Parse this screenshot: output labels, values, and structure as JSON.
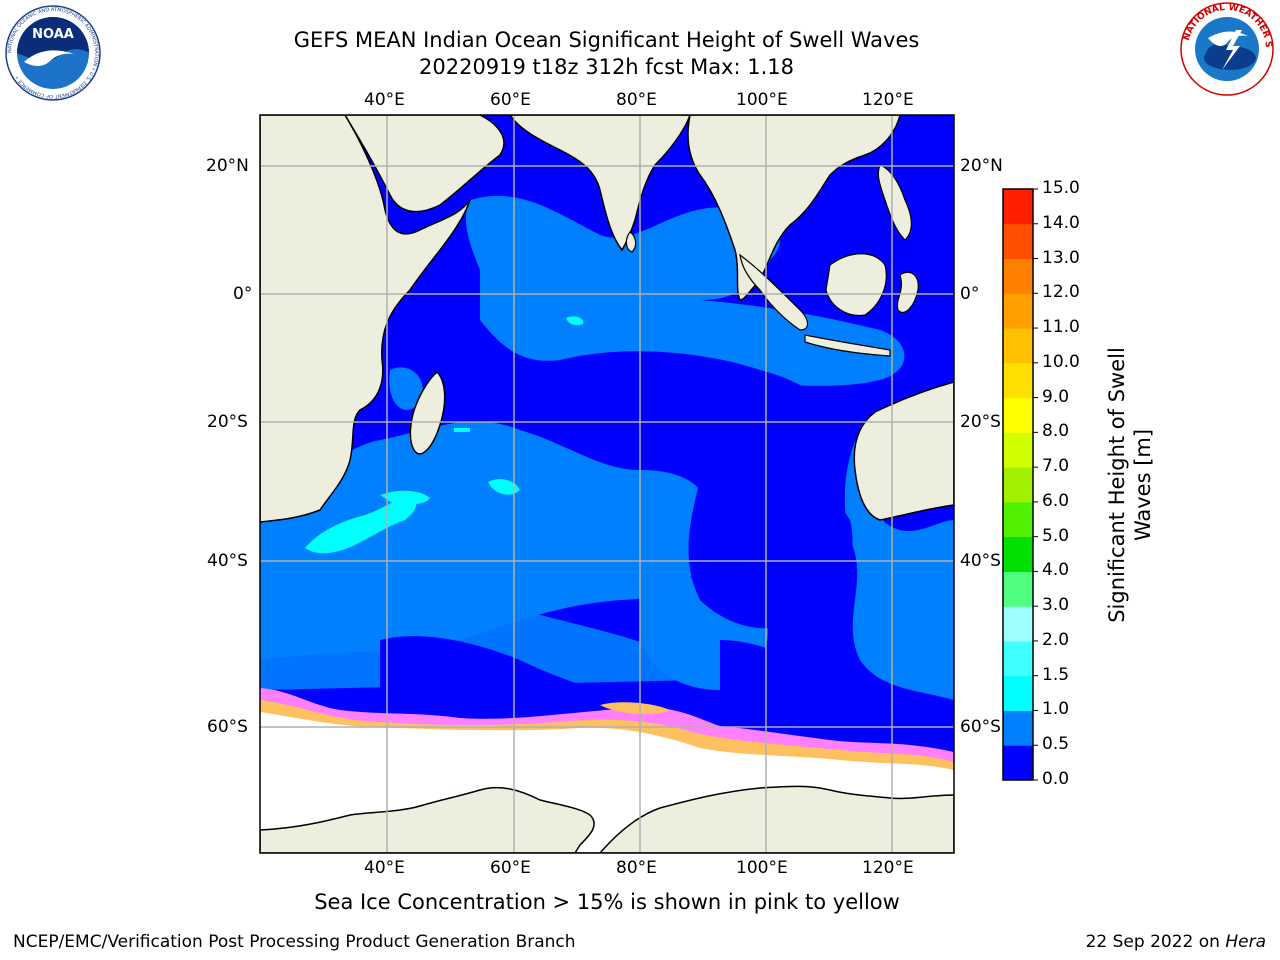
{
  "title": {
    "line1": "GEFS MEAN Indian Ocean Significant Height of Swell Waves",
    "line2": "20220919 t18z 312h fcst   Max: 1.18"
  },
  "logos": {
    "noaa": {
      "text": "NOAA",
      "ring": "NATIONAL OCEANIC AND ATMOSPHERIC ADMINISTRATION • U.S. DEPARTMENT OF COMMERCE •"
    },
    "nws": {
      "ring": "NATIONAL WEATHER SERVICE"
    }
  },
  "map": {
    "lon_ticks": [
      "40°E",
      "60°E",
      "80°E",
      "100°E",
      "120°E"
    ],
    "lat_ticks_left": [
      "20°N",
      "0°",
      "20°S",
      "40°S",
      "60°S"
    ],
    "lat_ticks_right": [
      "20°N",
      "0°",
      "20°S",
      "40°S",
      "60°S"
    ]
  },
  "colorbar": {
    "label_line1": "Significant Height of Swell",
    "label_line2": "Waves [m]",
    "ticks": [
      "0.0",
      "0.5",
      "1.0",
      "1.5",
      "2.0",
      "3.0",
      "4.0",
      "5.0",
      "6.0",
      "7.0",
      "8.0",
      "9.0",
      "10.0",
      "11.0",
      "12.0",
      "13.0",
      "14.0",
      "15.0"
    ],
    "colors": [
      "#0000ff",
      "#0080ff",
      "#00ffff",
      "#40ffff",
      "#a0ffff",
      "#50ff80",
      "#00e000",
      "#50f000",
      "#a0f000",
      "#d0ff00",
      "#ffff00",
      "#ffe000",
      "#ffc000",
      "#ffa000",
      "#ff8000",
      "#ff5000",
      "#ff2000"
    ]
  },
  "footer": {
    "note": "Sea Ice Concentration > 15% is shown in pink to yellow",
    "credit": "NCEP/EMC/Verification Post Processing Product Generation Branch",
    "date": "22 Sep 2022 on",
    "machine": "Hera"
  },
  "colors": {
    "land": "#eeeedf",
    "ocean_low": "#0000ff",
    "ocean_mid": "#0080ff",
    "ocean_high": "#00ffff",
    "ice": "#ffffff",
    "ice_edge_pink": "#ff80ff",
    "ice_edge_yellow": "#ffc060",
    "grid": "#b0b0b0"
  }
}
